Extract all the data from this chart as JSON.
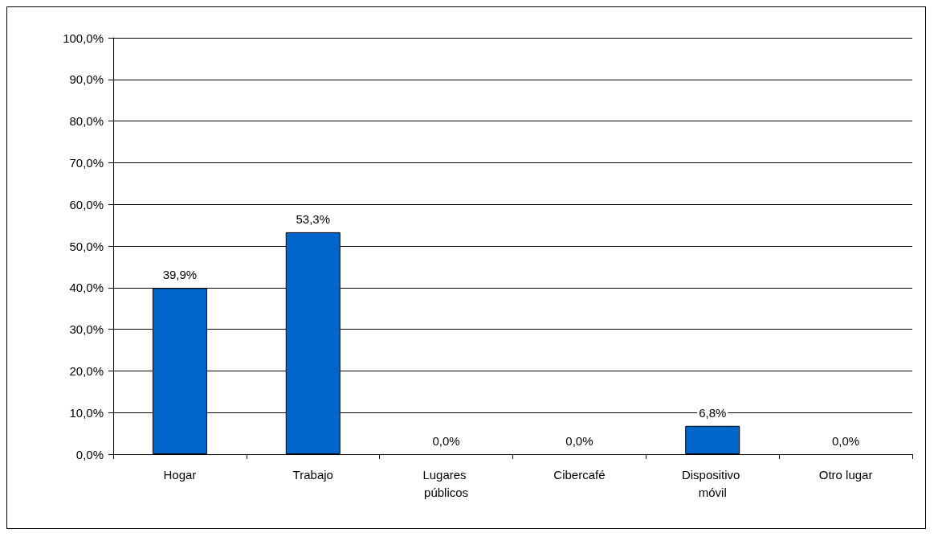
{
  "chart_data": {
    "type": "bar",
    "categories": [
      "Hogar",
      "Trabajo",
      "Lugares públicos",
      "Cibercafé",
      "Dispositivo móvil",
      "Otro lugar"
    ],
    "values": [
      39.9,
      53.3,
      0,
      0,
      6.8,
      0
    ],
    "value_labels": [
      "39,9%",
      "53,3%",
      "0,0%",
      "0,0%",
      "6,8%",
      "0,0%"
    ],
    "color": "#0066cc",
    "ylim": [
      0,
      100
    ],
    "yticks": [
      {
        "value": 0,
        "label": "0,0%"
      },
      {
        "value": 10,
        "label": "10,0%"
      },
      {
        "value": 20,
        "label": "20,0%"
      },
      {
        "value": 30,
        "label": "30,0%"
      },
      {
        "value": 40,
        "label": "40,0%"
      },
      {
        "value": 50,
        "label": "50,0%"
      },
      {
        "value": 60,
        "label": "60,0%"
      },
      {
        "value": 70,
        "label": "70,0%"
      },
      {
        "value": 80,
        "label": "80,0%"
      },
      {
        "value": 90,
        "label": "90,0%"
      },
      {
        "value": 100,
        "label": "100,0%"
      }
    ],
    "grid": "y"
  }
}
